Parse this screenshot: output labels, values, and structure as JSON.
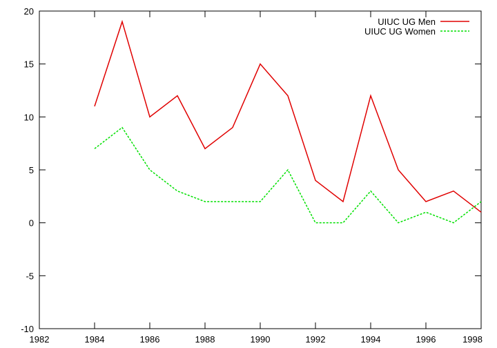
{
  "chart_data": {
    "type": "line",
    "title": "",
    "xlabel": "",
    "ylabel": "",
    "xlim": [
      1982,
      1998
    ],
    "ylim": [
      -10,
      20
    ],
    "x_ticks": [
      "1982",
      "1984",
      "1986",
      "1988",
      "1990",
      "1992",
      "1994",
      "1996",
      "1998"
    ],
    "y_ticks": [
      "-10",
      "-5",
      "0",
      "5",
      "10",
      "15",
      "20"
    ],
    "grid": false,
    "legend_position": "top-right",
    "x": [
      1984,
      1985,
      1986,
      1987,
      1988,
      1989,
      1990,
      1991,
      1992,
      1993,
      1994,
      1995,
      1996,
      1997,
      1998
    ],
    "series": [
      {
        "name": "UIUC UG Men",
        "color": "#e00000",
        "dash": "solid",
        "values": [
          11,
          19,
          10,
          12,
          7,
          9,
          15,
          12,
          4,
          2,
          12,
          5,
          2,
          3,
          1
        ]
      },
      {
        "name": "UIUC UG Women",
        "color": "#00e000",
        "dash": "dashed",
        "values": [
          7,
          9,
          5,
          3,
          2,
          2,
          2,
          5,
          0,
          0,
          3,
          0,
          1,
          0,
          2
        ]
      }
    ]
  }
}
